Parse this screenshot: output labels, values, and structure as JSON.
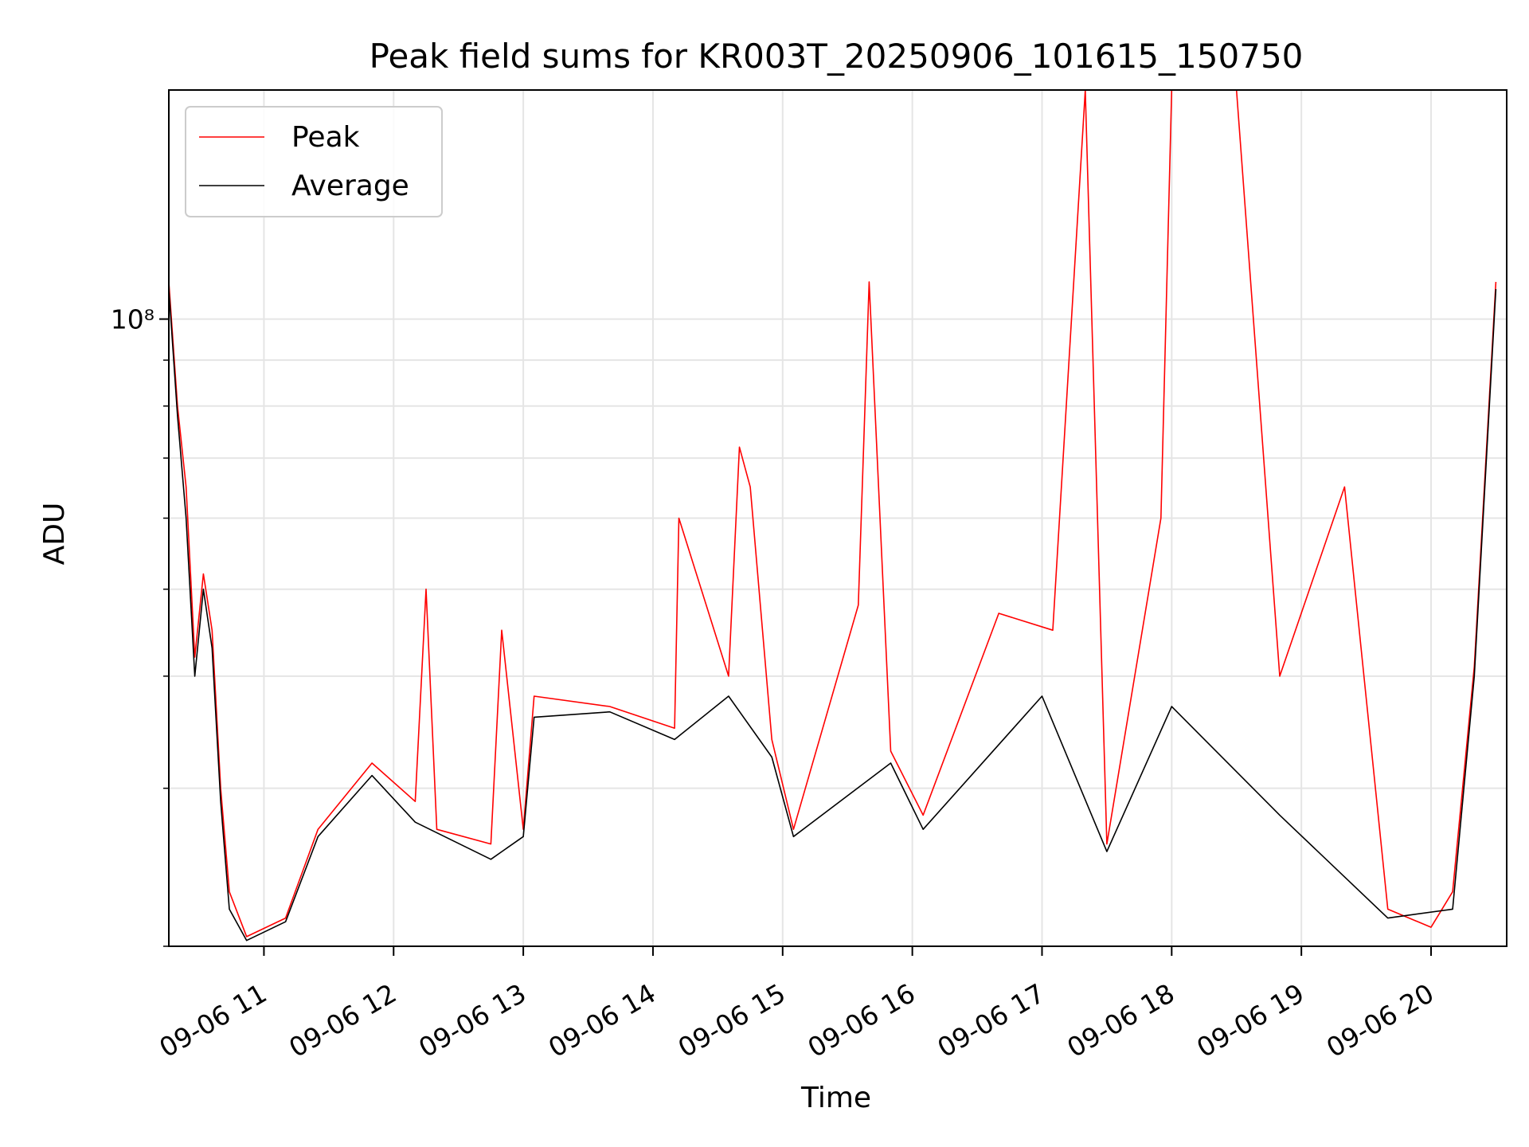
{
  "chart_data": {
    "type": "line",
    "title": "Peak field sums for KR003T_20250906_101615_150750",
    "xlabel": "Time",
    "ylabel": "ADU",
    "yscale": "log",
    "ylim": [
      20000000,
      180000000
    ],
    "xlim": [
      "2025-09-06 10:16",
      "2025-09-06 20:35"
    ],
    "x_ticks": [
      "09-06 11",
      "09-06 12",
      "09-06 13",
      "09-06 14",
      "09-06 15",
      "09-06 16",
      "09-06 17",
      "09-06 18",
      "09-06 19",
      "09-06 20"
    ],
    "y_ticks": [
      {
        "value": 100000000,
        "label": "10⁸"
      }
    ],
    "grid": true,
    "legend": "upper-left",
    "series": [
      {
        "name": "Peak",
        "color": "#ff0000",
        "points": [
          [
            "2025-09-06 10:16",
            110000000
          ],
          [
            "2025-09-06 10:20",
            80000000
          ],
          [
            "2025-09-06 10:24",
            65000000
          ],
          [
            "2025-09-06 10:28",
            42000000
          ],
          [
            "2025-09-06 10:32",
            52000000
          ],
          [
            "2025-09-06 10:36",
            45000000
          ],
          [
            "2025-09-06 10:40",
            30000000
          ],
          [
            "2025-09-06 10:44",
            23000000
          ],
          [
            "2025-09-06 10:52",
            20500000
          ],
          [
            "2025-09-06 11:10",
            21500000
          ],
          [
            "2025-09-06 11:25",
            27000000
          ],
          [
            "2025-09-06 11:50",
            32000000
          ],
          [
            "2025-09-06 12:10",
            29000000
          ],
          [
            "2025-09-06 12:15",
            50000000
          ],
          [
            "2025-09-06 12:20",
            27000000
          ],
          [
            "2025-09-06 12:45",
            26000000
          ],
          [
            "2025-09-06 12:50",
            45000000
          ],
          [
            "2025-09-06 13:00",
            27000000
          ],
          [
            "2025-09-06 13:05",
            38000000
          ],
          [
            "2025-09-06 13:40",
            37000000
          ],
          [
            "2025-09-06 14:10",
            35000000
          ],
          [
            "2025-09-06 14:12",
            60000000
          ],
          [
            "2025-09-06 14:35",
            40000000
          ],
          [
            "2025-09-06 14:40",
            72000000
          ],
          [
            "2025-09-06 14:45",
            65000000
          ],
          [
            "2025-09-06 14:55",
            34000000
          ],
          [
            "2025-09-06 15:05",
            27000000
          ],
          [
            "2025-09-06 15:35",
            48000000
          ],
          [
            "2025-09-06 15:40",
            110000000
          ],
          [
            "2025-09-06 15:50",
            33000000
          ],
          [
            "2025-09-06 16:05",
            28000000
          ],
          [
            "2025-09-06 16:40",
            47000000
          ],
          [
            "2025-09-06 17:05",
            45000000
          ],
          [
            "2025-09-06 17:20",
            180000000
          ],
          [
            "2025-09-06 17:30",
            26000000
          ],
          [
            "2025-09-06 17:55",
            60000000
          ],
          [
            "2025-09-06 18:00",
            180000000
          ],
          [
            "2025-09-06 18:30",
            180000000
          ],
          [
            "2025-09-06 18:50",
            40000000
          ],
          [
            "2025-09-06 19:20",
            65000000
          ],
          [
            "2025-09-06 19:40",
            22000000
          ],
          [
            "2025-09-06 20:00",
            21000000
          ],
          [
            "2025-09-06 20:10",
            23000000
          ],
          [
            "2025-09-06 20:20",
            41000000
          ],
          [
            "2025-09-06 20:30",
            110000000
          ]
        ]
      },
      {
        "name": "Average",
        "color": "#000000",
        "points": [
          [
            "2025-09-06 10:16",
            108000000
          ],
          [
            "2025-09-06 10:20",
            78000000
          ],
          [
            "2025-09-06 10:24",
            60000000
          ],
          [
            "2025-09-06 10:28",
            40000000
          ],
          [
            "2025-09-06 10:32",
            50000000
          ],
          [
            "2025-09-06 10:36",
            43000000
          ],
          [
            "2025-09-06 10:40",
            29000000
          ],
          [
            "2025-09-06 10:44",
            22000000
          ],
          [
            "2025-09-06 10:52",
            20300000
          ],
          [
            "2025-09-06 11:10",
            21300000
          ],
          [
            "2025-09-06 11:25",
            26500000
          ],
          [
            "2025-09-06 11:50",
            31000000
          ],
          [
            "2025-09-06 12:10",
            27500000
          ],
          [
            "2025-09-06 12:45",
            25000000
          ],
          [
            "2025-09-06 13:00",
            26500000
          ],
          [
            "2025-09-06 13:05",
            36000000
          ],
          [
            "2025-09-06 13:40",
            36500000
          ],
          [
            "2025-09-06 14:10",
            34000000
          ],
          [
            "2025-09-06 14:35",
            38000000
          ],
          [
            "2025-09-06 14:55",
            32500000
          ],
          [
            "2025-09-06 15:05",
            26500000
          ],
          [
            "2025-09-06 15:50",
            32000000
          ],
          [
            "2025-09-06 16:05",
            27000000
          ],
          [
            "2025-09-06 17:00",
            38000000
          ],
          [
            "2025-09-06 17:30",
            25500000
          ],
          [
            "2025-09-06 18:00",
            37000000
          ],
          [
            "2025-09-06 18:50",
            28000000
          ],
          [
            "2025-09-06 19:40",
            21500000
          ],
          [
            "2025-09-06 20:10",
            22000000
          ],
          [
            "2025-09-06 20:20",
            40000000
          ],
          [
            "2025-09-06 20:30",
            108000000
          ]
        ]
      }
    ]
  }
}
